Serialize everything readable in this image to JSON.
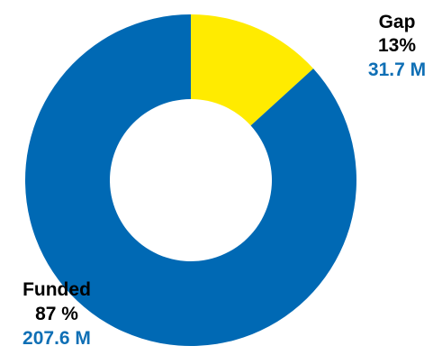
{
  "chart_data": {
    "type": "pie",
    "variant": "donut",
    "slices": [
      {
        "name": "Gap",
        "value": 31.7,
        "percent_label": "13%",
        "amount_label": "31.7 M",
        "color": "#ffeb00"
      },
      {
        "name": "Funded",
        "value": 207.6,
        "percent_label": "87 %",
        "amount_label": "207.6 M",
        "color": "#0069b4"
      }
    ],
    "label_colors": {
      "name": "#000000",
      "percent": "#000000",
      "amount": "#0f6fb5"
    }
  }
}
